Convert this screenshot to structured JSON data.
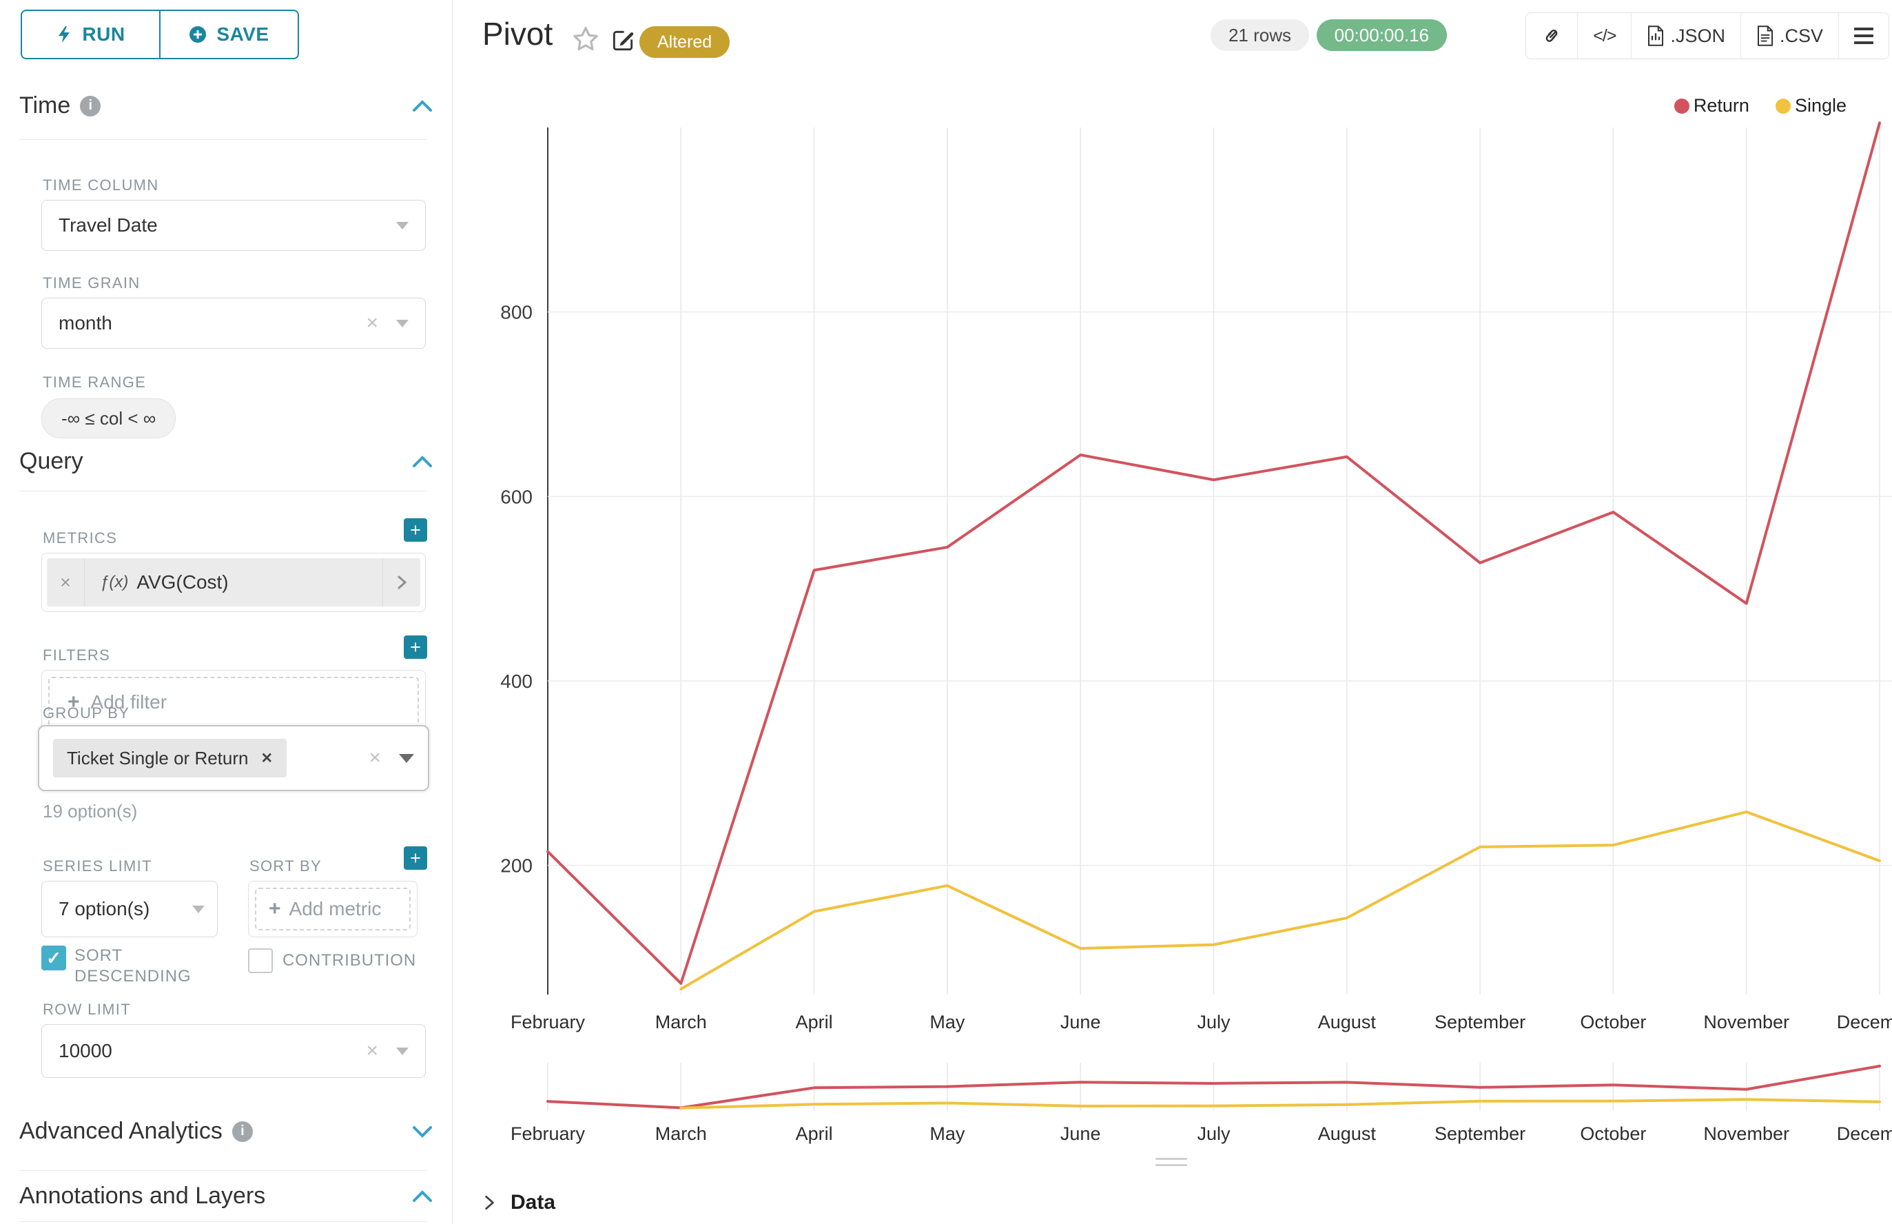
{
  "toolbar": {
    "run_label": "RUN",
    "save_label": "SAVE"
  },
  "icons": {
    "plus": "+",
    "close": "×",
    "tag_close": "✕",
    "check": "✓",
    "code": "</>"
  },
  "panel": {
    "time": {
      "title": "Time",
      "time_column_label": "TIME COLUMN",
      "time_column_value": "Travel Date",
      "time_grain_label": "TIME GRAIN",
      "time_grain_value": "month",
      "time_range_label": "TIME RANGE",
      "time_range_value": "-∞ ≤ col < ∞"
    },
    "query": {
      "title": "Query",
      "metrics_label": "METRICS",
      "metric_fx": "ƒ(x)",
      "metric_value": "AVG(Cost)",
      "filters_label": "FILTERS",
      "add_filter": "Add filter",
      "group_by_label": "GROUP BY",
      "group_by_tag": "Ticket Single or Return",
      "options_hint": "19 option(s)",
      "series_limit_label": "SERIES LIMIT",
      "series_limit_value": "7 option(s)",
      "sort_by_label": "SORT BY",
      "add_metric": "Add metric",
      "sort_descending_label": "SORT DESCENDING",
      "contribution_label": "CONTRIBUTION",
      "row_limit_label": "ROW LIMIT",
      "row_limit_value": "10000"
    },
    "advanced_analytics_title": "Advanced Analytics",
    "annotations_title": "Annotations and Layers"
  },
  "header": {
    "title": "Pivot",
    "altered_badge": "Altered",
    "rows_badge": "21 rows",
    "timer": "00:00:00.16",
    "export_json_label": ".JSON",
    "export_csv_label": ".CSV"
  },
  "data_panel_title": "Data",
  "chart_data": {
    "type": "line",
    "x": [
      "February",
      "March",
      "April",
      "May",
      "June",
      "July",
      "August",
      "September",
      "October",
      "November",
      "December"
    ],
    "series": [
      {
        "name": "Return",
        "color": "#d2535d",
        "values": [
          215,
          72,
          520,
          545,
          645,
          618,
          643,
          528,
          583,
          484,
          1005
        ]
      },
      {
        "name": "Single",
        "color": "#f0c23e",
        "values": [
          null,
          66,
          150,
          178,
          110,
          114,
          143,
          220,
          222,
          258,
          205
        ]
      }
    ],
    "ylim": [
      60,
      1000
    ],
    "yticks": [
      200,
      400,
      600,
      800
    ],
    "grid": true,
    "legend_position": "top-right",
    "has_preview_strip": true
  }
}
